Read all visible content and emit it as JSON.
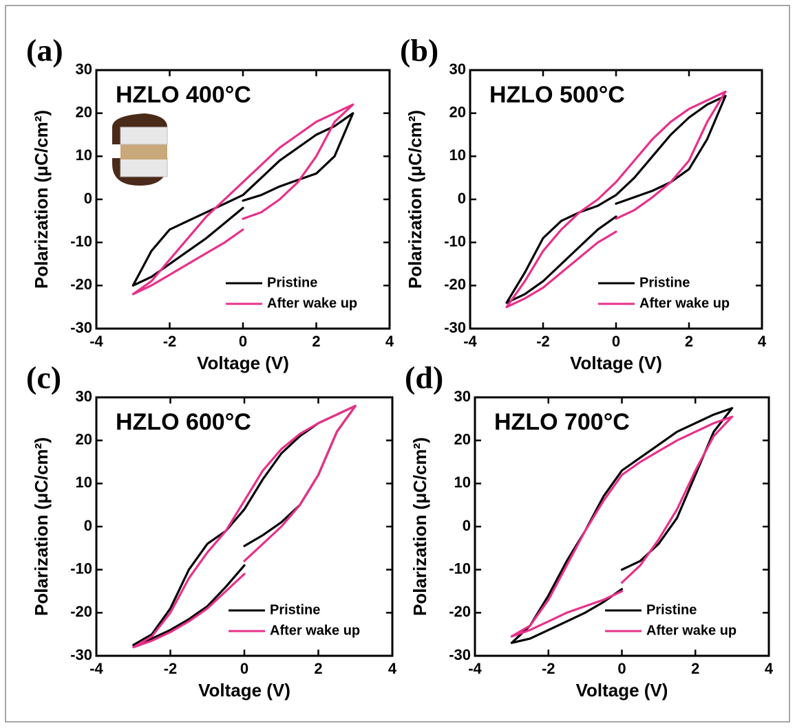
{
  "chart_data": [
    {
      "type": "line",
      "label": "(a)",
      "title": "HZLO 400°C",
      "xlabel": "Voltage (V)",
      "ylabel": "Polarization (μC/cm²)",
      "x": [
        0,
        0.5,
        1,
        1.5,
        2,
        2.5,
        3,
        2.5,
        2,
        1.5,
        1,
        0.5,
        0,
        -0.5,
        -1,
        -1.5,
        -2,
        -2.5,
        -3,
        -2.5,
        -2,
        -1.5,
        -1,
        -0.5,
        0
      ],
      "series": [
        {
          "name": "Pristine",
          "color": "#000000",
          "values": [
            -0.3,
            1,
            3,
            4.5,
            6,
            10,
            20,
            17,
            15,
            12,
            9,
            5,
            1,
            -1,
            -3,
            -5,
            -7,
            -12,
            -20,
            -18,
            -15,
            -12,
            -9,
            -5.5,
            -2
          ]
        },
        {
          "name": "After wake up",
          "color": "#e8308a",
          "values": [
            -4.5,
            -3,
            0,
            4,
            10,
            18,
            22,
            20,
            18,
            15,
            12,
            8,
            4,
            0,
            -4,
            -9,
            -14,
            -19,
            -22,
            -20,
            -17.5,
            -15,
            -12.5,
            -10,
            -7
          ]
        }
      ],
      "xlim": [
        -4,
        4
      ],
      "xticks": [
        -4,
        -2,
        0,
        2,
        4
      ],
      "ylim": [
        -30,
        30
      ],
      "yticks": [
        -30,
        -20,
        -10,
        0,
        10,
        20,
        30
      ],
      "legend": "lower right"
    },
    {
      "type": "line",
      "label": "(b)",
      "title": "HZLO 500°C",
      "xlabel": "Voltage (V)",
      "ylabel": "Polarization (μC/cm²)",
      "x": [
        0,
        0.5,
        1,
        1.5,
        2,
        2.5,
        3,
        2.5,
        2,
        1.5,
        1,
        0.5,
        0,
        -0.5,
        -1,
        -1.5,
        -2,
        -2.5,
        -3,
        -2.5,
        -2,
        -1.5,
        -1,
        -0.5,
        0
      ],
      "series": [
        {
          "name": "Pristine",
          "color": "#000000",
          "values": [
            -1,
            0.5,
            2,
            4,
            7,
            14,
            24,
            22,
            19,
            15,
            10,
            5,
            1,
            -1.5,
            -3,
            -5,
            -9,
            -17,
            -24,
            -22,
            -19,
            -15,
            -11,
            -7,
            -4
          ]
        },
        {
          "name": "After wake up",
          "color": "#e8308a",
          "values": [
            -4.5,
            -2.5,
            0.5,
            4,
            9,
            18,
            25,
            23,
            21,
            18,
            14,
            9,
            4,
            0,
            -3,
            -7,
            -12,
            -19,
            -25,
            -23,
            -20.5,
            -17,
            -13.5,
            -10,
            -7.5
          ]
        }
      ],
      "xlim": [
        -4,
        4
      ],
      "xticks": [
        -4,
        -2,
        0,
        2,
        4
      ],
      "ylim": [
        -30,
        30
      ],
      "yticks": [
        -30,
        -20,
        -10,
        0,
        10,
        20,
        30
      ],
      "legend": "lower right"
    },
    {
      "type": "line",
      "label": "(c)",
      "title": "HZLO 600°C",
      "xlabel": "Voltage (V)",
      "ylabel": "Polarization (μC/cm²)",
      "x": [
        0,
        0.5,
        1,
        1.5,
        2,
        2.5,
        3,
        2.5,
        2,
        1.5,
        1,
        0.5,
        0,
        -0.5,
        -1,
        -1.5,
        -2,
        -2.5,
        -3,
        -2.5,
        -2,
        -1.5,
        -1,
        -0.5,
        0
      ],
      "series": [
        {
          "name": "Pristine",
          "color": "#000000",
          "values": [
            -4.5,
            -2,
            1,
            5,
            12,
            22,
            28,
            26,
            24,
            21,
            17,
            11,
            4,
            -1,
            -4,
            -10,
            -19,
            -25,
            -27.5,
            -26,
            -24,
            -21.5,
            -18.5,
            -14,
            -9
          ]
        },
        {
          "name": "After wake up",
          "color": "#e8308a",
          "values": [
            -8,
            -4,
            0,
            5,
            12,
            22,
            28,
            26,
            24,
            21.5,
            18,
            13,
            6,
            -1,
            -6,
            -12,
            -20,
            -25.5,
            -28,
            -26.5,
            -24.5,
            -22,
            -19,
            -15,
            -11
          ]
        }
      ],
      "xlim": [
        -4,
        4
      ],
      "xticks": [
        -4,
        -2,
        0,
        2,
        4
      ],
      "ylim": [
        -30,
        30
      ],
      "yticks": [
        -30,
        -20,
        -10,
        0,
        10,
        20,
        30
      ],
      "legend": "lower right"
    },
    {
      "type": "line",
      "label": "(d)",
      "title": "HZLO 700°C",
      "xlabel": "Voltage (V)",
      "ylabel": "Polarization (μC/cm²)",
      "x": [
        0,
        0.5,
        1,
        1.5,
        2,
        2.5,
        3,
        2.5,
        2,
        1.5,
        1,
        0.5,
        0,
        -0.5,
        -1,
        -1.5,
        -2,
        -2.5,
        -3,
        -2.5,
        -2,
        -1.5,
        -1,
        -0.5,
        0
      ],
      "series": [
        {
          "name": "Pristine",
          "color": "#000000",
          "values": [
            -10,
            -8,
            -4,
            2,
            12,
            22,
            27.5,
            26,
            24,
            22,
            19,
            16,
            13,
            7,
            -1,
            -8,
            -16,
            -23,
            -27,
            -26,
            -24,
            -22,
            -20,
            -17.5,
            -14.5
          ]
        },
        {
          "name": "After wake up",
          "color": "#e8308a",
          "values": [
            -13,
            -9,
            -3,
            4,
            13,
            21,
            25.5,
            24,
            22,
            20,
            17.5,
            15,
            12,
            6,
            -1,
            -9,
            -17,
            -23,
            -25.5,
            -24,
            -22,
            -20,
            -18.5,
            -17,
            -15
          ]
        }
      ],
      "xlim": [
        -4,
        4
      ],
      "xticks": [
        -4,
        -2,
        0,
        2,
        4
      ],
      "ylim": [
        -30,
        30
      ],
      "yticks": [
        -30,
        -20,
        -10,
        0,
        10,
        20,
        30
      ],
      "legend": "lower right"
    }
  ]
}
